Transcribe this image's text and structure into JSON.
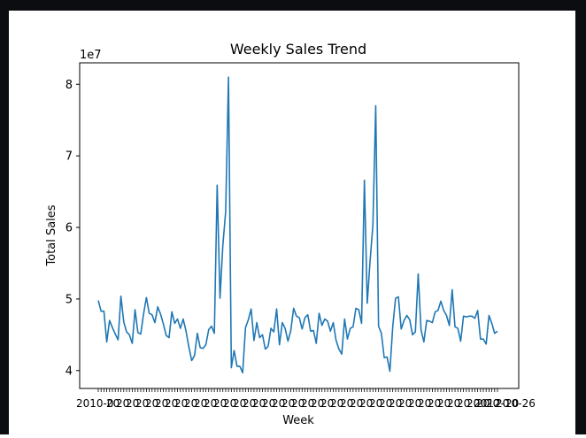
{
  "chart_data": {
    "type": "line",
    "title": "Weekly Sales Trend",
    "xlabel": "Week",
    "ylabel": "Total Sales",
    "y_offset_label": "1e7",
    "y_ticks": [
      4,
      5,
      6,
      7,
      8
    ],
    "ylim": [
      3.75,
      8.3
    ],
    "x_tick_labels_note": "2010-02-05 … 2012-10-26 (overlapping)",
    "x_tick_label_left": "2010-0",
    "x_tick_label_right": "2012-10-26",
    "grid": false,
    "legend": "none",
    "line_color": "#1f77b4",
    "series": [
      {
        "values": [
          4.98,
          4.83,
          4.83,
          4.4,
          4.7,
          4.6,
          4.51,
          4.43,
          5.04,
          4.68,
          4.54,
          4.5,
          4.38,
          4.85,
          4.53,
          4.51,
          4.79,
          5.02,
          4.8,
          4.78,
          4.67,
          4.89,
          4.79,
          4.65,
          4.49,
          4.46,
          4.82,
          4.66,
          4.72,
          4.59,
          4.72,
          4.55,
          4.33,
          4.14,
          4.21,
          4.52,
          4.32,
          4.31,
          4.36,
          4.57,
          4.62,
          4.52,
          6.59,
          5.01,
          5.75,
          6.22,
          8.1,
          4.04,
          4.28,
          4.06,
          4.06,
          3.97,
          4.6,
          4.71,
          4.86,
          4.42,
          4.67,
          4.46,
          4.5,
          4.3,
          4.34,
          4.59,
          4.54,
          4.86,
          4.36,
          4.67,
          4.59,
          4.41,
          4.56,
          4.87,
          4.76,
          4.74,
          4.58,
          4.74,
          4.78,
          4.55,
          4.56,
          4.38,
          4.8,
          4.63,
          4.72,
          4.69,
          4.55,
          4.67,
          4.42,
          4.3,
          4.23,
          4.72,
          4.44,
          4.59,
          4.61,
          4.87,
          4.85,
          4.66,
          6.66,
          4.94,
          5.53,
          6.03,
          7.7,
          4.62,
          4.52,
          4.18,
          4.19,
          3.99,
          4.61,
          5.01,
          5.03,
          4.58,
          4.7,
          4.77,
          4.71,
          4.5,
          4.54,
          5.35,
          4.57,
          4.4,
          4.7,
          4.69,
          4.67,
          4.82,
          4.84,
          4.97,
          4.84,
          4.77,
          4.63,
          5.13,
          4.61,
          4.59,
          4.41,
          4.76,
          4.75,
          4.76,
          4.76,
          4.73,
          4.84,
          4.44,
          4.44,
          4.37,
          4.77,
          4.66,
          4.52,
          4.55
        ]
      }
    ]
  }
}
